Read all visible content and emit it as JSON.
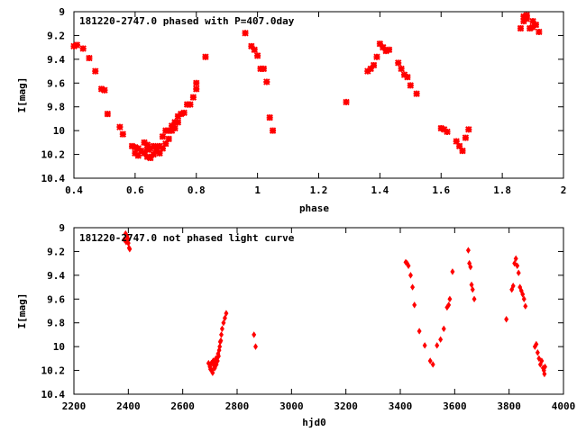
{
  "chart_data": [
    {
      "type": "scatter",
      "title": "181220-2747.0 phased with P=407.0day",
      "xlabel": "phase",
      "ylabel": "I[mag]",
      "xlim": [
        0.4,
        2.0
      ],
      "ylim": [
        9.0,
        10.4
      ],
      "y_inverted": true,
      "grid": false,
      "marker": "cross",
      "color": "#ff0000",
      "x_ticks": [
        "0.4",
        "0.6",
        "0.8",
        "1",
        "1.2",
        "1.4",
        "1.6",
        "1.8",
        "2"
      ],
      "x_tick_values": [
        0.4,
        0.6,
        0.8,
        1.0,
        1.2,
        1.4,
        1.6,
        1.8,
        2.0
      ],
      "y_ticks": [
        "9",
        "9.2",
        "9.4",
        "9.6",
        "9.8",
        "10",
        "10.2",
        "10.4"
      ],
      "y_tick_values": [
        9.0,
        9.2,
        9.4,
        9.6,
        9.8,
        10.0,
        10.2,
        10.4
      ],
      "series": [
        {
          "x": [
            0.4,
            0.41,
            0.43,
            0.45,
            0.47,
            0.49,
            0.5,
            0.51,
            0.55,
            0.56,
            0.59,
            0.6,
            0.6,
            0.61,
            0.61,
            0.62,
            0.63,
            0.63,
            0.64,
            0.64,
            0.64,
            0.65,
            0.65,
            0.66,
            0.66,
            0.67,
            0.67,
            0.68,
            0.68,
            0.69,
            0.69,
            0.7,
            0.7,
            0.71,
            0.71,
            0.72,
            0.72,
            0.73,
            0.73,
            0.74,
            0.74,
            0.75,
            0.76,
            0.77,
            0.78,
            0.79,
            0.8,
            0.8,
            0.83,
            0.96,
            0.98,
            0.99,
            1.0,
            1.01,
            1.02,
            1.03,
            1.04,
            1.05,
            1.29,
            1.36,
            1.37,
            1.38,
            1.39,
            1.4,
            1.41,
            1.42,
            1.43,
            1.46,
            1.47,
            1.48,
            1.49,
            1.5,
            1.52,
            1.6,
            1.61,
            1.62,
            1.65,
            1.66,
            1.67,
            1.68,
            1.69,
            1.86,
            1.87,
            1.87,
            1.88,
            1.88,
            1.89,
            1.9,
            1.9,
            1.91,
            1.92
          ],
          "y": [
            9.29,
            9.28,
            9.31,
            9.39,
            9.5,
            9.65,
            9.66,
            9.86,
            9.97,
            10.03,
            10.13,
            10.19,
            10.14,
            10.21,
            10.15,
            10.17,
            10.1,
            10.19,
            10.12,
            10.22,
            10.16,
            10.15,
            10.23,
            10.13,
            10.2,
            10.17,
            10.14,
            10.19,
            10.13,
            10.15,
            10.05,
            10.11,
            10.0,
            10.07,
            10.0,
            10.0,
            9.96,
            9.98,
            9.93,
            9.93,
            9.88,
            9.86,
            9.85,
            9.78,
            9.78,
            9.72,
            9.6,
            9.65,
            9.38,
            9.18,
            9.29,
            9.32,
            9.37,
            9.48,
            9.48,
            9.59,
            9.89,
            10.0,
            9.76,
            9.5,
            9.48,
            9.45,
            9.38,
            9.27,
            9.3,
            9.33,
            9.32,
            9.43,
            9.48,
            9.53,
            9.55,
            9.62,
            9.69,
            9.98,
            9.99,
            10.01,
            10.09,
            10.13,
            10.17,
            10.06,
            9.99,
            9.14,
            9.08,
            9.04,
            9.06,
            9.03,
            9.14,
            9.08,
            9.13,
            9.11,
            9.17
          ]
        }
      ]
    },
    {
      "type": "scatter",
      "title": "181220-2747.0 not phased light curve",
      "xlabel": "hjd0",
      "ylabel": "I[mag]",
      "xlim": [
        2200,
        4000
      ],
      "ylim": [
        9.0,
        10.4
      ],
      "y_inverted": true,
      "grid": false,
      "marker": "diamond",
      "color": "#ff0000",
      "x_ticks": [
        "2200",
        "2400",
        "2600",
        "2800",
        "3000",
        "3200",
        "3400",
        "3600",
        "3800",
        "4000"
      ],
      "x_tick_values": [
        2200,
        2400,
        2600,
        2800,
        3000,
        3200,
        3400,
        3600,
        3800,
        4000
      ],
      "y_ticks": [
        "9",
        "9.2",
        "9.4",
        "9.6",
        "9.8",
        "10",
        "10.2",
        "10.4"
      ],
      "y_tick_values": [
        9.0,
        9.2,
        9.4,
        9.6,
        9.8,
        10.0,
        10.2,
        10.4
      ],
      "series": [
        {
          "x": [
            2385,
            2390,
            2392,
            2395,
            2398,
            2400,
            2403,
            2405,
            2695,
            2700,
            2702,
            2705,
            2708,
            2710,
            2712,
            2715,
            2718,
            2720,
            2722,
            2724,
            2726,
            2728,
            2730,
            2732,
            2734,
            2736,
            2738,
            2740,
            2742,
            2745,
            2750,
            2755,
            2760,
            2862,
            2868,
            3420,
            3425,
            3430,
            3438,
            3445,
            3452,
            3470,
            3490,
            3510,
            3520,
            3535,
            3548,
            3560,
            3572,
            3578,
            3582,
            3592,
            3650,
            3654,
            3658,
            3662,
            3666,
            3672,
            3790,
            3810,
            3815,
            3820,
            3825,
            3830,
            3835,
            3840,
            3845,
            3850,
            3855,
            3860,
            3895,
            3900,
            3905,
            3910,
            3915,
            3920,
            3925,
            3928,
            3930,
            3932
          ],
          "y": [
            9.1,
            9.05,
            9.12,
            9.07,
            9.09,
            9.13,
            9.17,
            9.18,
            10.14,
            10.17,
            10.19,
            10.14,
            10.2,
            10.22,
            10.12,
            10.16,
            10.18,
            10.14,
            10.1,
            10.15,
            10.1,
            10.12,
            10.06,
            10.08,
            10.03,
            10.0,
            9.96,
            9.95,
            9.9,
            9.85,
            9.8,
            9.76,
            9.72,
            9.9,
            10.0,
            9.29,
            9.3,
            9.32,
            9.4,
            9.5,
            9.65,
            9.87,
            9.99,
            10.12,
            10.15,
            9.99,
            9.94,
            9.85,
            9.67,
            9.65,
            9.6,
            9.37,
            9.19,
            9.3,
            9.33,
            9.48,
            9.52,
            9.6,
            9.77,
            9.52,
            9.49,
            9.3,
            9.26,
            9.32,
            9.38,
            9.5,
            9.53,
            9.56,
            9.6,
            9.66,
            10.0,
            9.98,
            10.05,
            10.1,
            10.15,
            10.12,
            10.18,
            10.2,
            10.23,
            10.17
          ]
        }
      ]
    }
  ]
}
